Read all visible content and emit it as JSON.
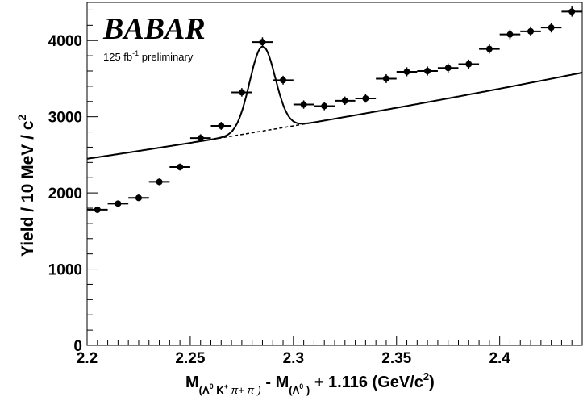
{
  "chart_data": {
    "type": "scatter",
    "experiment_logo": "BABAR",
    "luminosity_label": "125 fb",
    "luminosity_exponent": "-1",
    "luminosity_suffix": " preliminary",
    "ylabel": "Yield / 10 MeV / c",
    "ylabel_exponent": "2",
    "xlabel_parts": {
      "m1": "M",
      "m1_subscript": "(Λ",
      "m1_sub_sup": "0",
      "m1_subscript_mid": " K",
      "m1_sub_sup2": "+",
      "m1_subscript_end": " π+ π-)",
      "middle": " - M",
      "m2_subscript": "(Λ",
      "m2_sub_sup": "0",
      "m2_subscript_end": " )",
      "tail": " + 1.116 (GeV/c",
      "tail_sup": "2",
      "tail_end": ")"
    },
    "xlim": [
      2.2,
      2.44
    ],
    "ylim": [
      0,
      4500
    ],
    "x_ticks": [
      2.2,
      2.25,
      2.3,
      2.35,
      2.4
    ],
    "x_tick_labels": [
      "2.2",
      "2.25",
      "2.3",
      "2.35",
      "2.4"
    ],
    "y_ticks": [
      0,
      1000,
      2000,
      3000,
      4000
    ],
    "y_tick_labels": [
      "0",
      "1000",
      "2000",
      "3000",
      "4000"
    ],
    "bin_half_width": 0.005,
    "points": [
      {
        "x": 2.205,
        "y": 1780,
        "err": 40
      },
      {
        "x": 2.215,
        "y": 1860,
        "err": 40
      },
      {
        "x": 2.225,
        "y": 1935,
        "err": 42
      },
      {
        "x": 2.235,
        "y": 2145,
        "err": 44
      },
      {
        "x": 2.245,
        "y": 2340,
        "err": 46
      },
      {
        "x": 2.255,
        "y": 2720,
        "err": 50
      },
      {
        "x": 2.265,
        "y": 2880,
        "err": 52
      },
      {
        "x": 2.275,
        "y": 3320,
        "err": 56
      },
      {
        "x": 2.285,
        "y": 3980,
        "err": 62
      },
      {
        "x": 2.295,
        "y": 3480,
        "err": 58
      },
      {
        "x": 2.305,
        "y": 3160,
        "err": 55
      },
      {
        "x": 2.315,
        "y": 3140,
        "err": 55
      },
      {
        "x": 2.325,
        "y": 3210,
        "err": 55
      },
      {
        "x": 2.335,
        "y": 3240,
        "err": 56
      },
      {
        "x": 2.345,
        "y": 3500,
        "err": 58
      },
      {
        "x": 2.355,
        "y": 3590,
        "err": 59
      },
      {
        "x": 2.365,
        "y": 3600,
        "err": 59
      },
      {
        "x": 2.375,
        "y": 3640,
        "err": 60
      },
      {
        "x": 2.385,
        "y": 3690,
        "err": 60
      },
      {
        "x": 2.395,
        "y": 3890,
        "err": 62
      },
      {
        "x": 2.405,
        "y": 4080,
        "err": 63
      },
      {
        "x": 2.415,
        "y": 4120,
        "err": 64
      },
      {
        "x": 2.425,
        "y": 4170,
        "err": 64
      },
      {
        "x": 2.435,
        "y": 4380,
        "err": 66
      }
    ],
    "fit": {
      "background_poly": [
        2880,
        4600,
        2800
      ],
      "background_x0": 2.3,
      "signal_mean": 2.285,
      "signal_sigma": 0.0062,
      "signal_amplitude": 1110,
      "dashed_range": [
        2.25,
        2.315
      ]
    },
    "grid": false,
    "legend": "none"
  }
}
